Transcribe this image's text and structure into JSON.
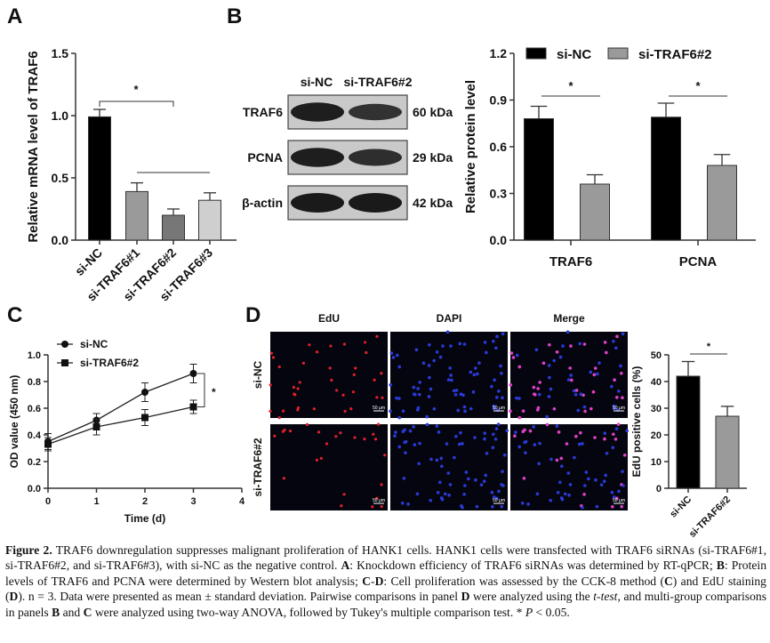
{
  "panels": {
    "A": {
      "letter": "A"
    },
    "B": {
      "letter": "B"
    },
    "C": {
      "letter": "C"
    },
    "D": {
      "letter": "D"
    }
  },
  "blot": {
    "columns": [
      "si-NC",
      "si-TRAF6#2"
    ],
    "rows": [
      {
        "protein": "TRAF6",
        "size": "60 kDa",
        "band_intensity": [
          0.95,
          0.7
        ]
      },
      {
        "protein": "PCNA",
        "size": "29 kDa",
        "band_intensity": [
          0.95,
          0.75
        ]
      },
      {
        "protein": "β-actin",
        "size": "42 kDa",
        "band_intensity": [
          1.0,
          1.0
        ]
      }
    ]
  },
  "microscopy": {
    "columns": [
      "EdU",
      "DAPI",
      "Merge"
    ],
    "rows": [
      "si-NC",
      "si-TRAF6#2"
    ],
    "scale_bar": "50 μm"
  },
  "chart_data": [
    {
      "id": "A",
      "type": "bar",
      "ylabel": "Relative mRNA level of TRAF6",
      "ylim": [
        0,
        1.5
      ],
      "yticks": [
        "0.0",
        "0.5",
        "1.0",
        "1.5"
      ],
      "categories": [
        "si-NC",
        "si-TRAF6#1",
        "si-TRAF6#2",
        "si-TRAF6#3"
      ],
      "values": [
        0.99,
        0.39,
        0.2,
        0.32
      ],
      "errors": [
        0.06,
        0.07,
        0.05,
        0.06
      ],
      "colors": [
        "#000000",
        "#9a9a9a",
        "#777777",
        "#cfcfcf"
      ],
      "annotation": "*"
    },
    {
      "id": "B",
      "type": "bar",
      "ylabel": "Relative protein level",
      "ylim": [
        0,
        1.2
      ],
      "yticks": [
        "0.0",
        "0.3",
        "0.6",
        "0.9",
        "1.2"
      ],
      "categories": [
        "TRAF6",
        "PCNA"
      ],
      "series": [
        {
          "name": "si-NC",
          "values": [
            0.78,
            0.79
          ],
          "errors": [
            0.08,
            0.09
          ],
          "color": "#000000"
        },
        {
          "name": "si-TRAF6#2",
          "values": [
            0.36,
            0.48
          ],
          "errors": [
            0.06,
            0.07
          ],
          "color": "#9a9a9a"
        }
      ],
      "legend": "top",
      "annotation": "*"
    },
    {
      "id": "C",
      "type": "line",
      "xlabel": "Time (d)",
      "ylabel": "OD value (450 nm)",
      "xlim": [
        0,
        4
      ],
      "ylim": [
        0,
        1.0
      ],
      "xticks": [
        "0",
        "1",
        "2",
        "3",
        "4"
      ],
      "yticks": [
        "0.0",
        "0.2",
        "0.4",
        "0.6",
        "0.8",
        "1.0"
      ],
      "x": [
        0,
        1,
        2,
        3
      ],
      "series": [
        {
          "name": "si-NC",
          "marker": "circle",
          "values": [
            0.35,
            0.51,
            0.72,
            0.86
          ],
          "errors": [
            0.06,
            0.05,
            0.07,
            0.07
          ]
        },
        {
          "name": "si-TRAF6#2",
          "marker": "square",
          "values": [
            0.33,
            0.46,
            0.53,
            0.61
          ],
          "errors": [
            0.05,
            0.06,
            0.06,
            0.05
          ]
        }
      ],
      "legend": "top-left",
      "annotation": "*"
    },
    {
      "id": "D",
      "type": "bar",
      "ylabel": "EdU positive cells (%)",
      "ylim": [
        0,
        50
      ],
      "yticks": [
        "0",
        "10",
        "20",
        "30",
        "40",
        "50"
      ],
      "categories": [
        "si-NC",
        "si-TRAF6#2"
      ],
      "values": [
        42,
        27
      ],
      "errors": [
        5.5,
        3.7
      ],
      "colors": [
        "#000000",
        "#9a9a9a"
      ],
      "annotation": "*"
    }
  ],
  "caption": {
    "label": "Figure 2.",
    "parts": [
      {
        "t": " TRAF6 downregulation suppresses malignant proliferation of HANK1 cells. HANK1 cells were transfected with TRAF6 siRNAs (si-TRAF6#1, si-TRAF6#2, and si-TRAF6#3), with si-NC as the negative control. "
      },
      {
        "b": "A"
      },
      {
        "t": ": Knockdown efficiency of TRAF6 siRNAs was determined by RT-qPCR; "
      },
      {
        "b": "B"
      },
      {
        "t": ": Protein levels of TRAF6 and PCNA were determined by Western blot analysis; "
      },
      {
        "b": "C"
      },
      {
        "t": "-"
      },
      {
        "b": "D"
      },
      {
        "t": ": Cell proliferation was assessed by the CCK-8 method ("
      },
      {
        "b": "C"
      },
      {
        "t": ") and EdU staining ("
      },
      {
        "b": "D"
      },
      {
        "t": "). n = 3. Data were presented as mean ± standard deviation. Pairwise comparisons in panel "
      },
      {
        "b": "D"
      },
      {
        "t": " were analyzed using the "
      },
      {
        "i": "t-test,"
      },
      {
        "t": " and multi-group comparisons in panels "
      },
      {
        "b": "B"
      },
      {
        "t": " and "
      },
      {
        "b": "C"
      },
      {
        "t": " were analyzed using two-way ANOVA, followed by Tukey's multiple comparison test. * "
      },
      {
        "i": "P"
      },
      {
        "t": " < 0.05."
      }
    ]
  }
}
